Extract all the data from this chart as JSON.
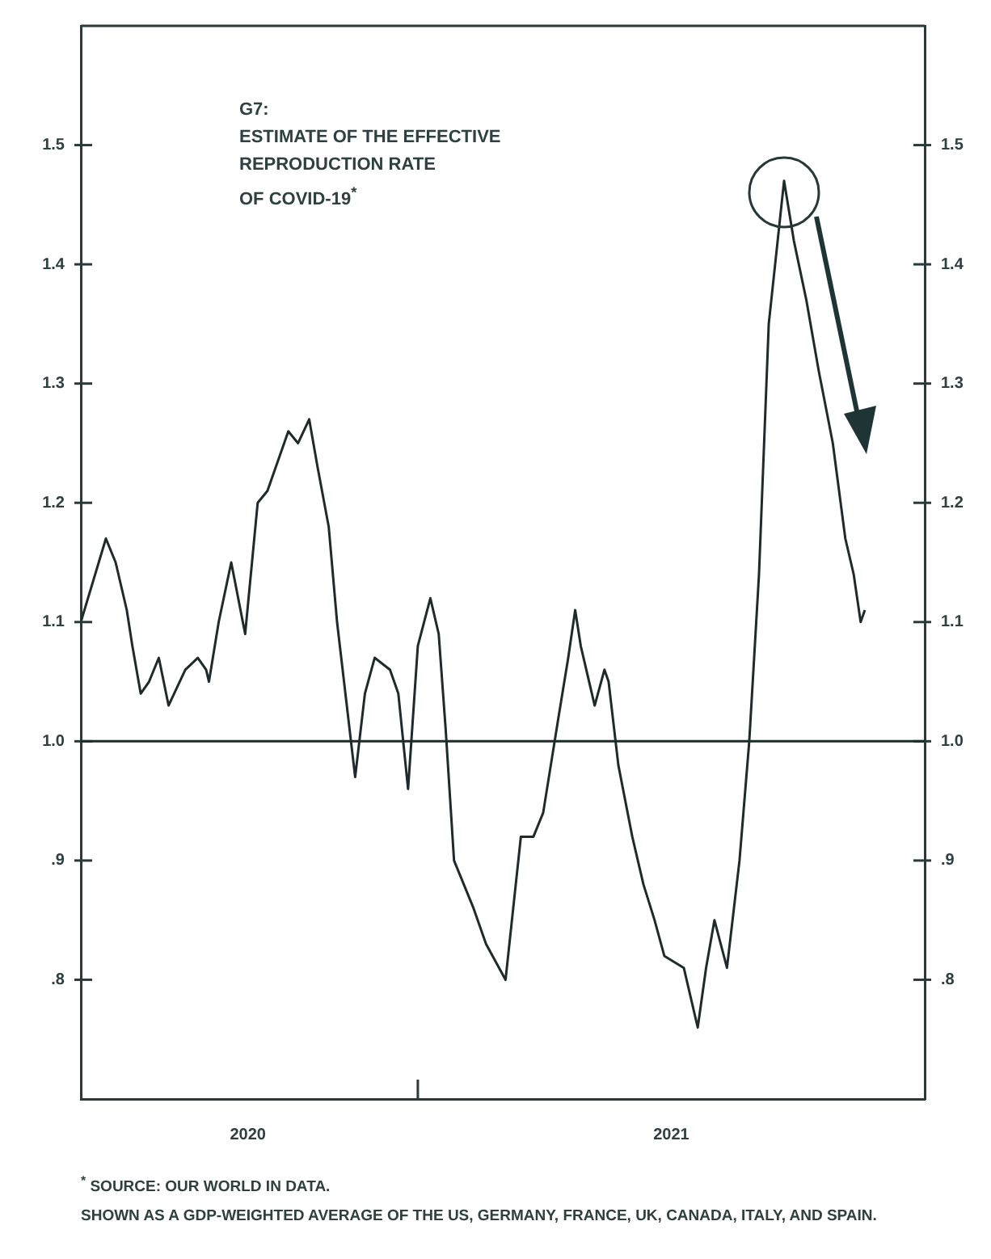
{
  "chart_data": {
    "type": "line",
    "title": "G7:",
    "subtitle": "ESTIMATE OF THE EFFECTIVE\nREPRODUCTION RATE\nOF COVID-19$^{*}$",
    "annotations": [
      "$^{*}$ SOURCE: OUR WORLD IN DATA.",
      "SHOWN AS A GDP-WEIGHTED AVERAGE OF THE US, GERMANY, FRANCE, UK, CANADA, ITALY, AND SPAIN."
    ],
    "x": [
      "2020-05-04",
      "2020-05-22",
      "2020-05-29",
      "2020-06-06",
      "2020-06-10",
      "2020-06-16",
      "2020-06-22",
      "2020-06-29",
      "2020-07-06",
      "2020-07-18",
      "2020-07-27",
      "2020-08-02",
      "2020-08-04",
      "2020-08-11",
      "2020-08-20",
      "2020-08-30",
      "2020-09-08",
      "2020-09-15",
      "2020-09-24",
      "2020-09-30",
      "2020-10-07",
      "2020-10-15",
      "2020-10-21",
      "2020-10-29",
      "2020-11-04",
      "2020-11-11",
      "2020-11-17",
      "2020-11-24",
      "2020-12-01",
      "2020-12-12",
      "2020-12-18",
      "2020-12-25",
      "2021-01-01",
      "2021-01-10",
      "2021-01-16",
      "2021-01-21",
      "2021-01-27",
      "2021-02-10",
      "2021-02-19",
      "2021-03-05",
      "2021-03-16",
      "2021-03-25",
      "2021-04-01",
      "2021-04-12",
      "2021-04-19",
      "2021-04-24",
      "2021-04-28",
      "2021-05-08",
      "2021-05-15",
      "2021-05-18",
      "2021-05-25",
      "2021-06-04",
      "2021-06-12",
      "2021-06-20",
      "2021-06-27",
      "2021-07-11",
      "2021-07-21",
      "2021-07-27",
      "2021-08-02",
      "2021-08-11",
      "2021-08-20",
      "2021-08-27",
      "2021-09-03",
      "2021-09-10",
      "2021-09-21",
      "2021-09-28",
      "2021-10-07",
      "2021-10-16",
      "2021-10-26",
      "2021-11-04",
      "2021-11-10",
      "2021-11-15",
      "2021-11-18"
    ],
    "series": [
      {
        "color": "#1f2a2a",
        "values": [
          1.1,
          1.17,
          1.15,
          1.11,
          1.08,
          1.04,
          1.05,
          1.07,
          1.03,
          1.06,
          1.07,
          1.06,
          1.05,
          1.1,
          1.15,
          1.09,
          1.2,
          1.21,
          1.24,
          1.26,
          1.25,
          1.27,
          1.23,
          1.18,
          1.1,
          1.03,
          0.97,
          1.04,
          1.07,
          1.06,
          1.04,
          0.96,
          1.08,
          1.12,
          1.09,
          1.01,
          0.9,
          0.86,
          0.83,
          0.8,
          0.92,
          0.92,
          0.94,
          1.02,
          1.07,
          1.11,
          1.08,
          1.03,
          1.06,
          1.05,
          0.98,
          0.92,
          0.88,
          0.85,
          0.82,
          0.81,
          0.76,
          0.81,
          0.85,
          0.81,
          0.9,
          1.0,
          1.14,
          1.35,
          1.47,
          1.42,
          1.37,
          1.31,
          1.25,
          1.17,
          1.14,
          1.1,
          1.11
        ]
      }
    ],
    "xlim": [
      "2020-05-04",
      "2021-12-31"
    ],
    "xticks": [
      {
        "value": "2020-09-01",
        "label": "2020"
      },
      {
        "value": "2021-01-01",
        "label": null
      },
      {
        "value": "2021-07-02",
        "label": "2021"
      }
    ],
    "ylim": [
      0.7,
      1.6
    ],
    "yticks": [
      {
        "value": 0.8,
        "label": ".8"
      },
      {
        "value": 0.9,
        "label": ".9"
      },
      {
        "value": 1,
        "label": "1.0"
      },
      1.1,
      1.2,
      1.3,
      1.4,
      1.5
    ],
    "y2lim": [
      0.7,
      1.6
    ],
    "y2ticks": [
      {
        "value": 0.8,
        "label": ".8"
      },
      {
        "value": 0.9,
        "label": ".9"
      },
      {
        "value": 1,
        "label": "1.0"
      },
      1.1,
      1.2,
      1.3,
      1.4,
      1.5
    ],
    "ref_lines": [
      {
        "axis": "y",
        "value": 1,
        "color": "#1f2a2a"
      }
    ]
  }
}
